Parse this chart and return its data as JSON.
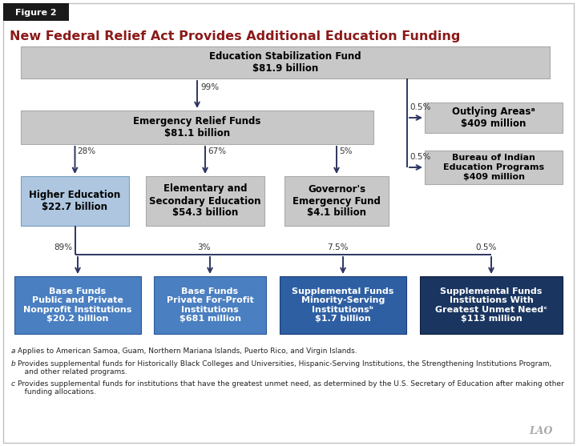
{
  "title": "New Federal Relief Act Provides Additional Education Funding",
  "figure_label": "Figure 2",
  "bg_color": "#ffffff",
  "border_color": "#c0c0c0",
  "header_bg": "#1a1a1a",
  "header_text_color": "#ffffff",
  "title_color": "#8b1a1a",
  "arrow_color": "#2d3561",
  "footnotes": [
    [
      "a",
      "Applies to American Samoa, Guam, Northern Mariana Islands, Puerto Rico, and Virgin Islands."
    ],
    [
      "b",
      "Provides supplemental funds for Historically Black Colleges and Universities, Hispanic-Serving Institutions, the Strengthening Institutions Program,\n   and other related programs."
    ],
    [
      "c",
      "Provides supplemental funds for institutions that have the greatest unmet need, as determined by the U.S. Secretary of Education after making other\n   funding allocations."
    ]
  ]
}
